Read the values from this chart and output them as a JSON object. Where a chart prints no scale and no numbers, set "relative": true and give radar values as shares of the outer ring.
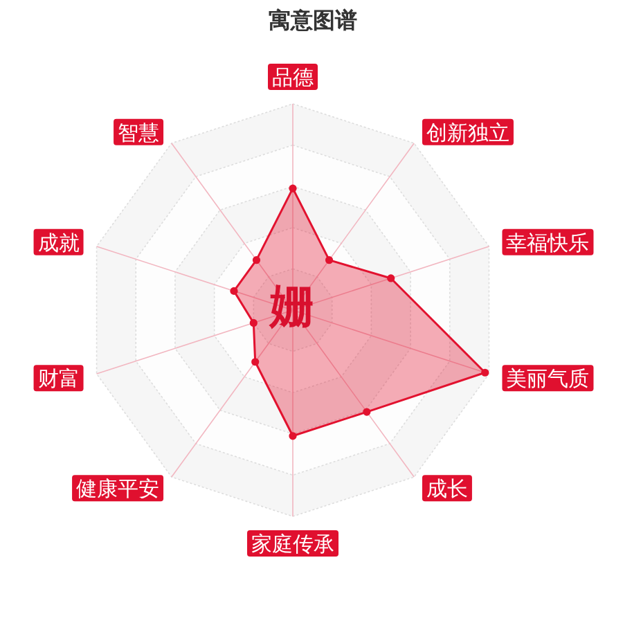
{
  "chart_data": {
    "type": "radar",
    "title": "寓意图谱",
    "categories": [
      "品德",
      "创新独立",
      "幸福快乐",
      "美丽气质",
      "成长",
      "家庭传承",
      "健康平安",
      "财富",
      "成就",
      "智慧"
    ],
    "relative": true,
    "grid": true,
    "marker": "circle",
    "series": [
      {
        "color": "#e2122f",
        "values": [
          0.59,
          0.3,
          0.5,
          0.98,
          0.61,
          0.61,
          0.31,
          0.2,
          0.3,
          0.3
        ]
      }
    ],
    "annotations": [
      "姗"
    ]
  }
}
